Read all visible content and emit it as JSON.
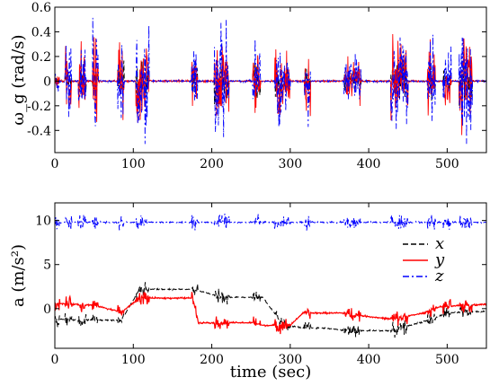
{
  "chart_data": [
    {
      "type": "line",
      "ylabel": "ω_g (rad/s)",
      "xlim": [
        0,
        550
      ],
      "ylim": [
        -0.58,
        0.6
      ],
      "xticks": [
        0,
        100,
        200,
        300,
        400,
        500
      ],
      "yticks": [
        -0.4,
        -0.2,
        0,
        0.2,
        0.4,
        0.6
      ],
      "ytick_labels": [
        "-0.4",
        "-0.2",
        "0",
        "0.2",
        "0.4",
        "0.6"
      ],
      "xtick_labels": [
        "0",
        "100",
        "200",
        "300",
        "400",
        "500"
      ],
      "series": [
        {
          "key": "x",
          "color": "#000000",
          "dash": "6,3"
        },
        {
          "key": "y",
          "color": "#ff0000",
          "dash": ""
        },
        {
          "key": "z",
          "color": "#0000ff",
          "dash": "7,3,2,3"
        }
      ],
      "motion_bursts": [
        {
          "t": [
            0,
            6
          ],
          "amp": 0.12
        },
        {
          "t": [
            13,
            22
          ],
          "amp": 0.45
        },
        {
          "t": [
            30,
            40
          ],
          "amp": 0.5
        },
        {
          "t": [
            48,
            55
          ],
          "amp": 0.55
        },
        {
          "t": [
            80,
            88
          ],
          "amp": 0.55
        },
        {
          "t": [
            103,
            120
          ],
          "amp": 0.6
        },
        {
          "t": [
            174,
            182
          ],
          "amp": 0.45
        },
        {
          "t": [
            203,
            222
          ],
          "amp": 0.55
        },
        {
          "t": [
            252,
            262
          ],
          "amp": 0.5
        },
        {
          "t": [
            280,
            300
          ],
          "amp": 0.4
        },
        {
          "t": [
            318,
            326
          ],
          "amp": 0.4
        },
        {
          "t": [
            368,
            390
          ],
          "amp": 0.3
        },
        {
          "t": [
            428,
            450
          ],
          "amp": 0.55
        },
        {
          "t": [
            475,
            485
          ],
          "amp": 0.45
        },
        {
          "t": [
            495,
            505
          ],
          "amp": 0.3
        },
        {
          "t": [
            515,
            532
          ],
          "amp": 0.6
        }
      ]
    },
    {
      "type": "line",
      "xlabel": "time (sec)",
      "ylabel": "a (m/s²)",
      "xlim": [
        0,
        550
      ],
      "ylim": [
        -4.5,
        12
      ],
      "xticks": [
        0,
        100,
        200,
        300,
        400,
        500
      ],
      "yticks": [
        0,
        5,
        10
      ],
      "xtick_labels": [
        "0",
        "100",
        "200",
        "300",
        "400",
        "500"
      ],
      "ytick_labels": [
        "0",
        "5",
        "10"
      ],
      "legend": {
        "placement": "right",
        "entries": [
          "x",
          "y",
          "z"
        ]
      },
      "series": [
        {
          "name": "x",
          "color": "#000000",
          "dash": "6,3",
          "segments": [
            [
              0,
              -1.2
            ],
            [
              50,
              -1.3
            ],
            [
              85,
              -1.3
            ],
            [
              108,
              2.2
            ],
            [
              176,
              2.2
            ],
            [
              213,
              1.3
            ],
            [
              265,
              1.3
            ],
            [
              290,
              -1.8
            ],
            [
              316,
              -2.2
            ],
            [
              345,
              -2.2
            ],
            [
              375,
              -2.5
            ],
            [
              430,
              -2.5
            ],
            [
              480,
              -1.2
            ],
            [
              500,
              -0.5
            ],
            [
              550,
              -0.3
            ]
          ]
        },
        {
          "name": "y",
          "color": "#ff0000",
          "dash": "",
          "segments": [
            [
              0,
              0.6
            ],
            [
              50,
              0.4
            ],
            [
              85,
              -0.4
            ],
            [
              108,
              1.2
            ],
            [
              176,
              1.2
            ],
            [
              183,
              -1.6
            ],
            [
              213,
              -1.6
            ],
            [
              255,
              -1.6
            ],
            [
              265,
              -1.9
            ],
            [
              300,
              -1.9
            ],
            [
              316,
              -0.5
            ],
            [
              365,
              -0.5
            ],
            [
              400,
              -0.9
            ],
            [
              430,
              -1.2
            ],
            [
              470,
              -0.5
            ],
            [
              490,
              0.2
            ],
            [
              550,
              0.5
            ]
          ]
        },
        {
          "name": "z",
          "color": "#0000ff",
          "dash": "7,3,2,3",
          "segments": [
            [
              0,
              9.8
            ],
            [
              550,
              9.8
            ]
          ]
        }
      ]
    }
  ]
}
